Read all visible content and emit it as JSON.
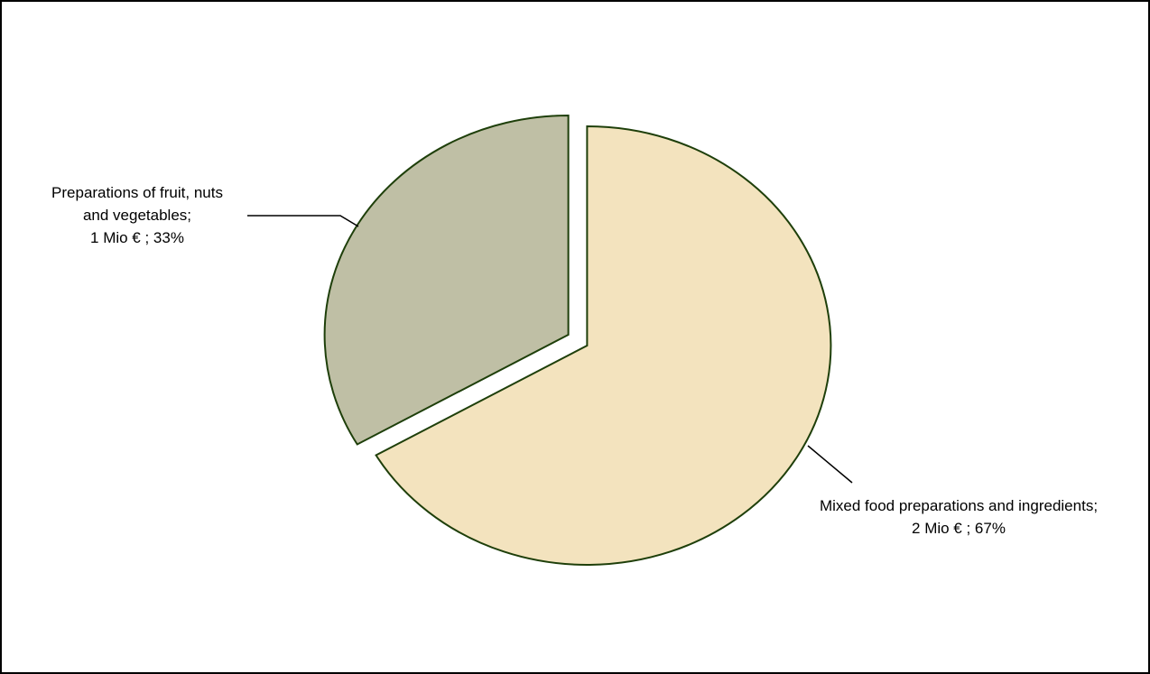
{
  "chart_data": {
    "type": "pie",
    "title": "",
    "unit": "Mio €",
    "slices": [
      {
        "name": "Mixed food preparations and ingredients",
        "value": 2,
        "percent": 67,
        "label_line1": "Mixed food preparations and ingredients;",
        "label_line2": "2 Mio € ; 67%",
        "color": "#F3E3BE",
        "exploded": true
      },
      {
        "name": "Preparations of fruit, nuts and vegetables",
        "value": 1,
        "percent": 33,
        "label_line1": "Preparations of fruit, nuts",
        "label_line2": "and vegetables;",
        "label_line3": "1 Mio € ; 33%",
        "color": "#BFBFA5",
        "exploded": true
      }
    ],
    "outline_color": "#1E3F0A",
    "legend": "none"
  }
}
